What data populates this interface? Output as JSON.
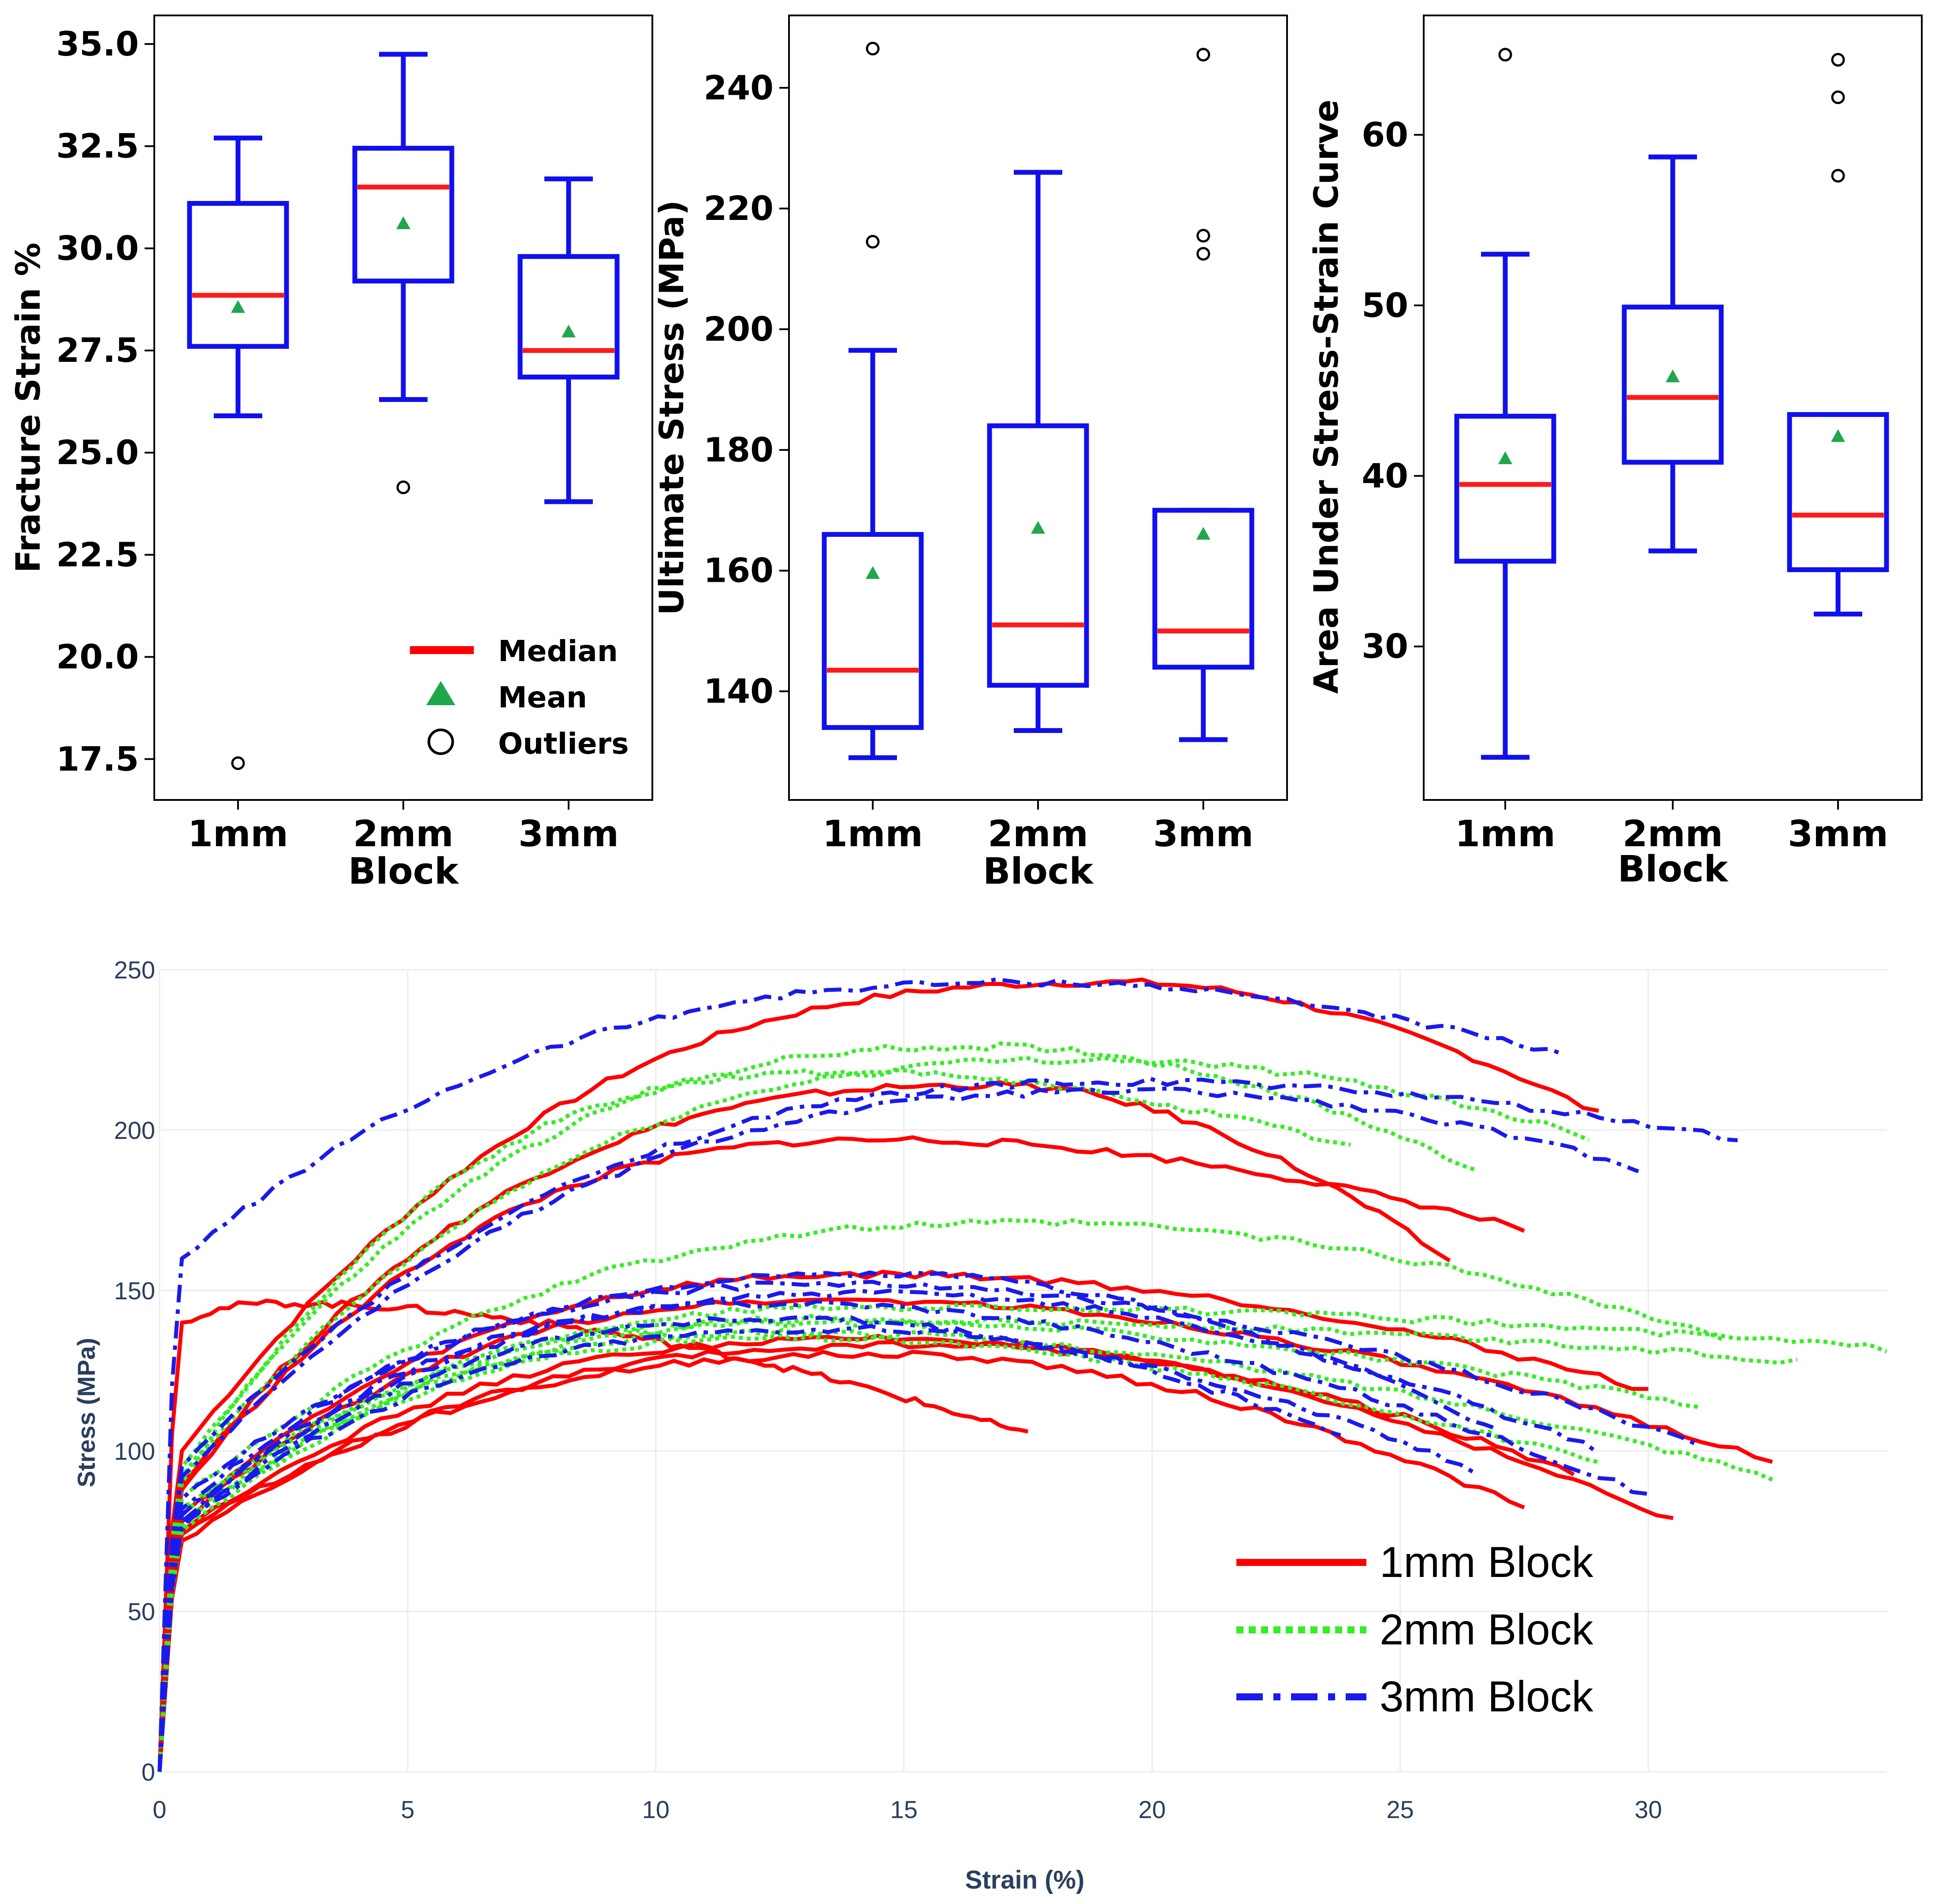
{
  "chart_data": [
    {
      "id": "fracture",
      "type": "box",
      "ylabel": "Fracture Strain %",
      "xlabel": "Block",
      "ylim": [
        16.5,
        35.7
      ],
      "yticks": [
        17.5,
        20.0,
        22.5,
        25.0,
        27.5,
        30.0,
        32.5,
        35.0
      ],
      "ytick_labels": [
        "17.5",
        "20.0",
        "22.5",
        "25.0",
        "27.5",
        "30.0",
        "32.5",
        "35.0"
      ],
      "categories": [
        "1mm",
        "2mm",
        "3mm"
      ],
      "boxes": [
        {
          "whisker_low": 25.9,
          "q1": 27.6,
          "median": 28.85,
          "q3": 31.1,
          "whisker_high": 32.7,
          "mean": 28.55,
          "outliers": [
            17.4
          ]
        },
        {
          "whisker_low": 26.3,
          "q1": 29.2,
          "median": 31.5,
          "q3": 32.45,
          "whisker_high": 34.75,
          "mean": 30.6,
          "outliers": [
            24.15
          ]
        },
        {
          "whisker_low": 23.8,
          "q1": 26.85,
          "median": 27.5,
          "q3": 29.8,
          "whisker_high": 31.7,
          "mean": 27.95,
          "outliers": []
        }
      ],
      "legend": {
        "median": "Median",
        "mean": "Mean",
        "outliers": "Outliers"
      }
    },
    {
      "id": "ultimate",
      "type": "box",
      "ylabel": "Ultimate Stress (MPa)",
      "xlabel": "Block",
      "ylim": [
        122,
        252
      ],
      "yticks": [
        140,
        160,
        180,
        200,
        220,
        240
      ],
      "ytick_labels": [
        "140",
        "160",
        "180",
        "200",
        "220",
        "240"
      ],
      "categories": [
        "1mm",
        "2mm",
        "3mm"
      ],
      "boxes": [
        {
          "whisker_low": 129,
          "q1": 134,
          "median": 143.5,
          "q3": 166,
          "whisker_high": 196.5,
          "mean": 159.5,
          "outliers": [
            214.5,
            246.5
          ]
        },
        {
          "whisker_low": 133.5,
          "q1": 141,
          "median": 151,
          "q3": 184,
          "whisker_high": 226,
          "mean": 167,
          "outliers": []
        },
        {
          "whisker_low": 132,
          "q1": 144,
          "median": 150,
          "q3": 170,
          "whisker_high": 170,
          "mean": 166,
          "outliers": [
            212.5,
            215.5,
            245.5
          ]
        }
      ]
    },
    {
      "id": "area",
      "type": "box",
      "ylabel": "Area Under Stress-Strain Curve",
      "xlabel": "Block",
      "ylim": [
        21,
        67
      ],
      "yticks": [
        30,
        40,
        50,
        60
      ],
      "ytick_labels": [
        "30",
        "40",
        "50",
        "60"
      ],
      "categories": [
        "1mm",
        "2mm",
        "3mm"
      ],
      "boxes": [
        {
          "whisker_low": 23.5,
          "q1": 35,
          "median": 39.5,
          "q3": 43.5,
          "whisker_high": 53,
          "mean": 41,
          "outliers": [
            64.7
          ]
        },
        {
          "whisker_low": 35.6,
          "q1": 40.8,
          "median": 44.6,
          "q3": 49.9,
          "whisker_high": 58.7,
          "mean": 45.8,
          "outliers": []
        },
        {
          "whisker_low": 31.9,
          "q1": 34.5,
          "median": 37.7,
          "q3": 43.6,
          "whisker_high": 43.6,
          "mean": 42.3,
          "outliers": [
            57.6,
            62.2,
            64.4
          ]
        }
      ]
    },
    {
      "id": "stress_strain",
      "type": "line",
      "xlabel": "Strain (%)",
      "ylabel": "Stress (MPa)",
      "xlim": [
        0,
        34.8
      ],
      "ylim": [
        0,
        250
      ],
      "xticks": [
        0,
        5,
        10,
        15,
        20,
        25,
        30
      ],
      "yticks": [
        0,
        50,
        100,
        150,
        200,
        250
      ],
      "series": [
        {
          "name": "1mm Block",
          "color": "#ff0000",
          "style": "solid",
          "curves": [
            {
              "yield": 100,
              "ult": 246,
              "peak_x": 19.5,
              "end_x": 29,
              "end_y": 205
            },
            {
              "yield": 90,
              "ult": 214,
              "peak_x": 17,
              "end_x": 26,
              "end_y": 159
            },
            {
              "yield": 88,
              "ult": 197,
              "peak_x": 15,
              "end_x": 27.5,
              "end_y": 169
            },
            {
              "yield": 140,
              "ult": 146,
              "peak_x": 2.5,
              "end_x": 17.5,
              "end_y": 105
            },
            {
              "yield": 80,
              "ult": 155,
              "peak_x": 15,
              "end_x": 30,
              "end_y": 119
            },
            {
              "yield": 78,
              "ult": 147,
              "peak_x": 14,
              "end_x": 32.5,
              "end_y": 97
            },
            {
              "yield": 75,
              "ult": 135,
              "peak_x": 15,
              "end_x": 30.5,
              "end_y": 78
            },
            {
              "yield": 72,
              "ult": 130,
              "peak_x": 15,
              "end_x": 27.5,
              "end_y": 82
            },
            {
              "yield": 74,
              "ult": 133,
              "peak_x": 16,
              "end_x": 28.5,
              "end_y": 93
            }
          ]
        },
        {
          "name": "2mm Block",
          "color": "#33ee22",
          "style": "dotted",
          "curves": [
            {
              "yield": 95,
              "ult": 226,
              "peak_x": 17,
              "end_x": 26.5,
              "end_y": 188
            },
            {
              "yield": 92,
              "ult": 222,
              "peak_x": 19,
              "end_x": 28.8,
              "end_y": 198
            },
            {
              "yield": 90,
              "ult": 218,
              "peak_x": 14,
              "end_x": 24,
              "end_y": 195
            },
            {
              "yield": 85,
              "ult": 171,
              "peak_x": 18,
              "end_x": 31.5,
              "end_y": 135
            },
            {
              "yield": 82,
              "ult": 145,
              "peak_x": 15,
              "end_x": 34.8,
              "end_y": 132
            },
            {
              "yield": 80,
              "ult": 141,
              "peak_x": 14,
              "end_x": 33,
              "end_y": 128
            },
            {
              "yield": 78,
              "ult": 140,
              "peak_x": 14,
              "end_x": 31,
              "end_y": 114
            },
            {
              "yield": 76,
              "ult": 137,
              "peak_x": 13,
              "end_x": 32.5,
              "end_y": 92
            },
            {
              "yield": 75,
              "ult": 135,
              "peak_x": 13,
              "end_x": 29,
              "end_y": 96
            }
          ]
        },
        {
          "name": "3mm Block",
          "color": "#1a1aee",
          "style": "dashdot",
          "curves": [
            {
              "yield": 160,
              "ult": 246,
              "peak_x": 18,
              "end_x": 28.3,
              "end_y": 223
            },
            {
              "yield": 95,
              "ult": 215,
              "peak_x": 20,
              "end_x": 31.8,
              "end_y": 197
            },
            {
              "yield": 92,
              "ult": 212,
              "peak_x": 20,
              "end_x": 29.8,
              "end_y": 188
            },
            {
              "yield": 85,
              "ult": 155,
              "peak_x": 15,
              "end_x": 27,
              "end_y": 106
            },
            {
              "yield": 82,
              "ult": 152,
              "peak_x": 14,
              "end_x": 31,
              "end_y": 102
            },
            {
              "yield": 80,
              "ult": 149,
              "peak_x": 15,
              "end_x": 29,
              "end_y": 100
            },
            {
              "yield": 78,
              "ult": 146,
              "peak_x": 13,
              "end_x": 30,
              "end_y": 86
            },
            {
              "yield": 76,
              "ult": 141,
              "peak_x": 13,
              "end_x": 23.8,
              "end_y": 105
            },
            {
              "yield": 77,
              "ult": 138,
              "peak_x": 14,
              "end_x": 26.5,
              "end_y": 94
            }
          ]
        }
      ]
    }
  ]
}
